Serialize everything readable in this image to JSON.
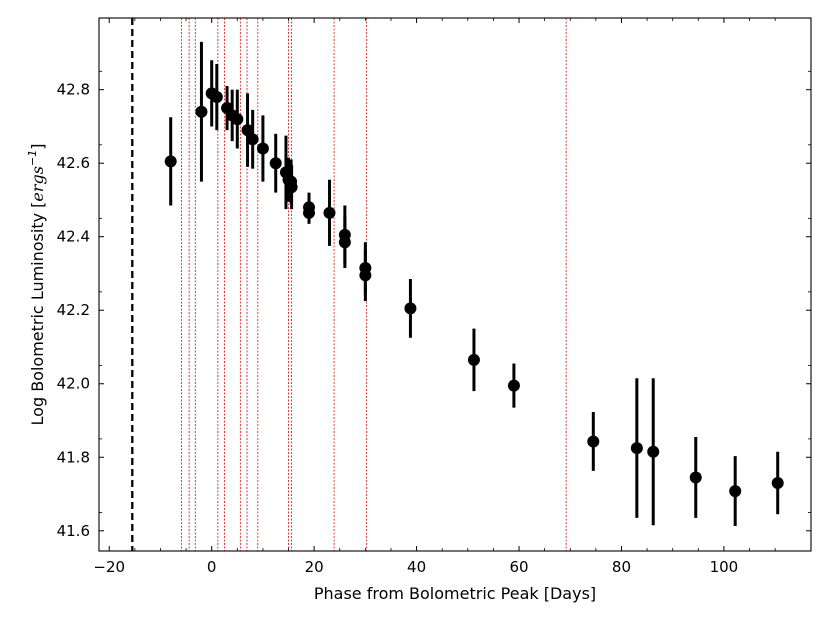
{
  "chart_data": {
    "type": "scatter",
    "xlabel": "Phase from Bolometric Peak [Days]",
    "ylabel_main": "Log Bolometric Luminosity [",
    "ylabel_unit": "ergs",
    "ylabel_sup": "−1",
    "ylabel_end": "]",
    "xlim": [
      -22,
      117
    ],
    "ylim": [
      41.545,
      42.995
    ],
    "xticks": [
      -20,
      0,
      20,
      40,
      60,
      80,
      100
    ],
    "xtick_labels": [
      "−20",
      "0",
      "20",
      "40",
      "60",
      "80",
      "100"
    ],
    "yticks": [
      41.6,
      41.8,
      42.0,
      42.2,
      42.4,
      42.6,
      42.8
    ],
    "ytick_labels": [
      "41.6",
      "41.8",
      "42.0",
      "42.2",
      "42.4",
      "42.6",
      "42.8"
    ],
    "grid": false,
    "legend": "none",
    "marker_color": "#000000",
    "vline_color": "#d62728",
    "black_dashed_line_x": -15.5,
    "red_dotted_lines_x": [
      -5.9,
      -4.4,
      -3.2,
      1.2,
      2.5,
      5.6,
      6.9,
      9.0,
      15.0,
      15.6,
      23.9,
      30.2,
      69.2
    ],
    "points": [
      {
        "x": -8.0,
        "y": 42.605,
        "err_low": 0.12,
        "err_high": 0.12
      },
      {
        "x": -2.0,
        "y": 42.74,
        "err_low": 0.19,
        "err_high": 0.19
      },
      {
        "x": 0.0,
        "y": 42.79,
        "err_low": 0.09,
        "err_high": 0.09
      },
      {
        "x": 1.0,
        "y": 42.78,
        "err_low": 0.09,
        "err_high": 0.09
      },
      {
        "x": 3.0,
        "y": 42.75,
        "err_low": 0.06,
        "err_high": 0.06
      },
      {
        "x": 4.0,
        "y": 42.73,
        "err_low": 0.07,
        "err_high": 0.07
      },
      {
        "x": 5.0,
        "y": 42.72,
        "err_low": 0.08,
        "err_high": 0.08
      },
      {
        "x": 7.0,
        "y": 42.69,
        "err_low": 0.1,
        "err_high": 0.1
      },
      {
        "x": 8.0,
        "y": 42.665,
        "err_low": 0.08,
        "err_high": 0.08
      },
      {
        "x": 10.0,
        "y": 42.64,
        "err_low": 0.09,
        "err_high": 0.09
      },
      {
        "x": 12.5,
        "y": 42.6,
        "err_low": 0.08,
        "err_high": 0.08
      },
      {
        "x": 14.5,
        "y": 42.575,
        "err_low": 0.1,
        "err_high": 0.1
      },
      {
        "x": 15.0,
        "y": 42.555,
        "err_low": 0.06,
        "err_high": 0.06
      },
      {
        "x": 15.5,
        "y": 42.55,
        "err_low": 0.06,
        "err_high": 0.06
      },
      {
        "x": 15.6,
        "y": 42.535,
        "err_low": 0.06,
        "err_high": 0.06
      },
      {
        "x": 19.0,
        "y": 42.48,
        "err_low": 0.04,
        "err_high": 0.04
      },
      {
        "x": 19.0,
        "y": 42.465,
        "err_low": 0.03,
        "err_high": 0.03
      },
      {
        "x": 23.0,
        "y": 42.465,
        "err_low": 0.09,
        "err_high": 0.09
      },
      {
        "x": 26.0,
        "y": 42.405,
        "err_low": 0.08,
        "err_high": 0.08
      },
      {
        "x": 26.0,
        "y": 42.385,
        "err_low": 0.07,
        "err_high": 0.07
      },
      {
        "x": 30.0,
        "y": 42.315,
        "err_low": 0.07,
        "err_high": 0.07
      },
      {
        "x": 30.0,
        "y": 42.295,
        "err_low": 0.07,
        "err_high": 0.07
      },
      {
        "x": 38.8,
        "y": 42.205,
        "err_low": 0.08,
        "err_high": 0.08
      },
      {
        "x": 51.2,
        "y": 42.065,
        "err_low": 0.085,
        "err_high": 0.085
      },
      {
        "x": 59.0,
        "y": 41.995,
        "err_low": 0.06,
        "err_high": 0.06
      },
      {
        "x": 74.5,
        "y": 41.843,
        "err_low": 0.08,
        "err_high": 0.08
      },
      {
        "x": 83.0,
        "y": 41.825,
        "err_low": 0.19,
        "err_high": 0.19
      },
      {
        "x": 86.2,
        "y": 41.815,
        "err_low": 0.2,
        "err_high": 0.2
      },
      {
        "x": 94.5,
        "y": 41.745,
        "err_low": 0.11,
        "err_high": 0.11
      },
      {
        "x": 102.2,
        "y": 41.708,
        "err_low": 0.095,
        "err_high": 0.095
      },
      {
        "x": 110.5,
        "y": 41.73,
        "err_low": 0.085,
        "err_high": 0.085
      }
    ]
  }
}
